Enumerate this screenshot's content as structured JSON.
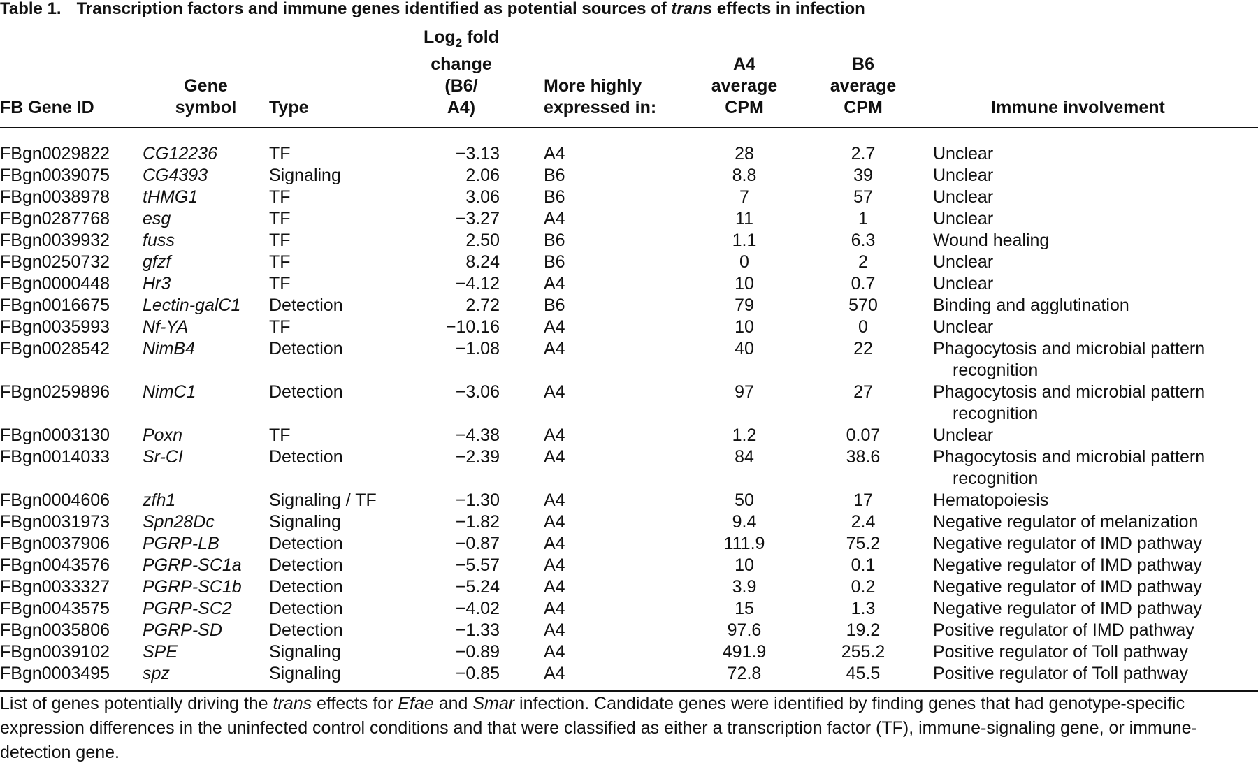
{
  "title": {
    "label": "Table 1.",
    "parts": [
      "Transcription factors and immune genes identified as potential sources of ",
      {
        "italic": "trans"
      },
      " effects in infection"
    ]
  },
  "table": {
    "headers": [
      {
        "lines": [
          [
            "FB Gene ID"
          ]
        ]
      },
      {
        "lines": [
          [
            "Gene"
          ],
          [
            "symbol"
          ]
        ]
      },
      {
        "lines": [
          [
            "Type"
          ]
        ]
      },
      {
        "lines": [
          [
            "Log",
            {
              "sub": "2"
            },
            " fold"
          ],
          [
            "change (B6/"
          ],
          [
            "A4)"
          ]
        ]
      },
      {
        "lines": [
          [
            "More highly"
          ],
          [
            "expressed in:"
          ]
        ]
      },
      {
        "lines": [
          [
            "A4"
          ],
          [
            "average"
          ],
          [
            "CPM"
          ]
        ]
      },
      {
        "lines": [
          [
            "B6"
          ],
          [
            "average"
          ],
          [
            "CPM"
          ]
        ]
      },
      {
        "lines": [
          [
            "Immune involvement"
          ]
        ]
      }
    ],
    "rows": [
      [
        "FBgn0029822",
        "CG12236",
        "TF",
        "−3.13",
        "A4",
        "28",
        "2.7",
        "Unclear"
      ],
      [
        "FBgn0039075",
        "CG4393",
        "Signaling",
        "2.06",
        "B6",
        "8.8",
        "39",
        "Unclear"
      ],
      [
        "FBgn0038978",
        "tHMG1",
        "TF",
        "3.06",
        "B6",
        "7",
        "57",
        "Unclear"
      ],
      [
        "FBgn0287768",
        "esg",
        "TF",
        "−3.27",
        "A4",
        "11",
        "1",
        "Unclear"
      ],
      [
        "FBgn0039932",
        "fuss",
        "TF",
        "2.50",
        "B6",
        "1.1",
        "6.3",
        "Wound healing"
      ],
      [
        "FBgn0250732",
        "gfzf",
        "TF",
        "8.24",
        "B6",
        "0",
        "2",
        "Unclear"
      ],
      [
        "FBgn0000448",
        "Hr3",
        "TF",
        "−4.12",
        "A4",
        "10",
        "0.7",
        "Unclear"
      ],
      [
        "FBgn0016675",
        "Lectin-galC1",
        "Detection",
        "2.72",
        "B6",
        "79",
        "570",
        "Binding and agglutination"
      ],
      [
        "FBgn0035993",
        "Nf-YA",
        "TF",
        "−10.16",
        "A4",
        "10",
        "0",
        "Unclear"
      ],
      [
        "FBgn0028542",
        "NimB4",
        "Detection",
        "−1.08",
        "A4",
        "40",
        "22",
        "Phagocytosis and microbial pattern recognition"
      ],
      [
        "FBgn0259896",
        "NimC1",
        "Detection",
        "−3.06",
        "A4",
        "97",
        "27",
        "Phagocytosis and microbial pattern recognition"
      ],
      [
        "FBgn0003130",
        "Poxn",
        "TF",
        "−4.38",
        "A4",
        "1.2",
        "0.07",
        "Unclear"
      ],
      [
        "FBgn0014033",
        "Sr-CI",
        "Detection",
        "−2.39",
        "A4",
        "84",
        "38.6",
        "Phagocytosis and microbial pattern recognition"
      ],
      [
        "FBgn0004606",
        "zfh1",
        "Signaling / TF",
        "−1.30",
        "A4",
        "50",
        "17",
        "Hematopoiesis"
      ],
      [
        "FBgn0031973",
        "Spn28Dc",
        "Signaling",
        "−1.82",
        "A4",
        "9.4",
        "2.4",
        "Negative regulator of melanization"
      ],
      [
        "FBgn0037906",
        "PGRP-LB",
        "Detection",
        "−0.87",
        "A4",
        "111.9",
        "75.2",
        "Negative regulator of IMD pathway"
      ],
      [
        "FBgn0043576",
        "PGRP-SC1a",
        "Detection",
        "−5.57",
        "A4",
        "10",
        "0.1",
        "Negative regulator of IMD pathway"
      ],
      [
        "FBgn0033327",
        "PGRP-SC1b",
        "Detection",
        "−5.24",
        "A4",
        "3.9",
        "0.2",
        "Negative regulator of IMD pathway"
      ],
      [
        "FBgn0043575",
        "PGRP-SC2",
        "Detection",
        "−4.02",
        "A4",
        "15",
        "1.3",
        "Negative regulator of IMD pathway"
      ],
      [
        "FBgn0035806",
        "PGRP-SD",
        "Detection",
        "−1.33",
        "A4",
        "97.6",
        "19.2",
        "Positive regulator of IMD pathway"
      ],
      [
        "FBgn0039102",
        "SPE",
        "Signaling",
        "−0.89",
        "A4",
        "491.9",
        "255.2",
        "Positive regulator of Toll pathway"
      ],
      [
        "FBgn0003495",
        "spz",
        "Signaling",
        "−0.85",
        "A4",
        "72.8",
        "45.5",
        "Positive regulator of Toll pathway"
      ]
    ]
  },
  "footnote": {
    "parts": [
      "List of genes potentially driving the ",
      {
        "italic": "trans"
      },
      " effects for ",
      {
        "italic": "Efae"
      },
      " and ",
      {
        "italic": "Smar"
      },
      " infection. Candidate genes were identified by finding genes that had genotype-specific expression differences in the uninfected control conditions and that were classified as either a transcription factor (TF), immune-signaling gene, or immune-detection gene."
    ]
  }
}
